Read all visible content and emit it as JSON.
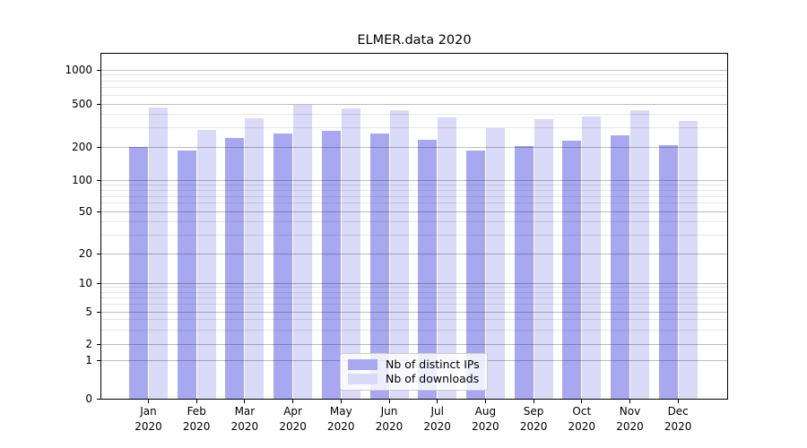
{
  "title": "ELMER.data 2020",
  "chart_data": {
    "type": "bar",
    "title": "ELMER.data 2020",
    "categories": [
      "Jan 2020",
      "Feb 2020",
      "Mar 2020",
      "Apr 2020",
      "May 2020",
      "Jun 2020",
      "Jul 2020",
      "Aug 2020",
      "Sep 2020",
      "Oct 2020",
      "Nov 2020",
      "Dec 2020"
    ],
    "series": [
      {
        "name": "Nb of distinct IPs",
        "color": "#a8a8f0",
        "values": [
          202,
          185,
          240,
          266,
          283,
          267,
          234,
          187,
          203,
          228,
          255,
          206
        ]
      },
      {
        "name": "Nb of downloads",
        "color": "#d9d9f8",
        "values": [
          460,
          290,
          370,
          490,
          452,
          438,
          378,
          300,
          360,
          385,
          440,
          345
        ]
      }
    ],
    "y_axis": {
      "scale": "symlog",
      "tick_values": [
        0,
        1,
        2,
        5,
        10,
        20,
        50,
        100,
        200,
        500,
        1000
      ],
      "tick_labels": [
        "0",
        "1",
        "2",
        "5",
        "10",
        "20",
        "50",
        "100",
        "200",
        "500",
        "1000"
      ],
      "ylim": [
        0,
        1400
      ]
    },
    "grid": "major and minor horizontal gridlines",
    "legend_position": "inside lower middle"
  }
}
